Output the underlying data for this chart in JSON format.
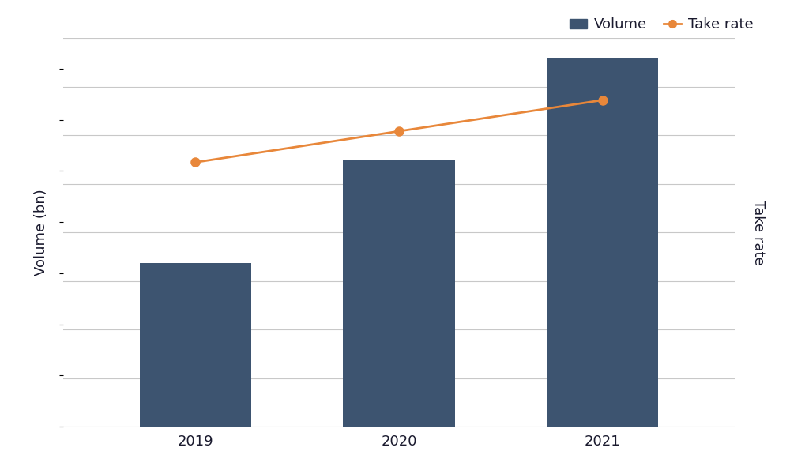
{
  "years": [
    2019,
    2020,
    2021
  ],
  "volume_values": [
    16,
    26,
    36
  ],
  "take_rate_values": [
    0.68,
    0.76,
    0.84
  ],
  "bar_color": "#3d5470",
  "line_color": "#e8873a",
  "volume_ylim": [
    0,
    38
  ],
  "take_rate_ylim": [
    0.0,
    1.0
  ],
  "ylabel_left": "Volume (bn)",
  "ylabel_right": "Take rate",
  "legend_volume": "Volume",
  "legend_take_rate": "Take rate",
  "background_color": "#ffffff",
  "grid_color": "#c8c8c8",
  "bar_width": 0.55,
  "label_fontsize": 13,
  "tick_fontsize": 13,
  "n_gridlines": 9
}
